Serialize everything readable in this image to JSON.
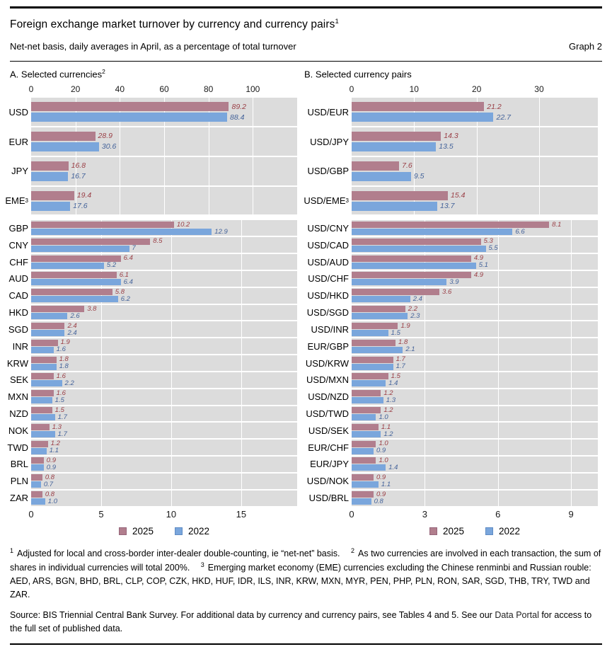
{
  "header": {
    "title": "Foreign exchange market turnover by currency and currency pairs",
    "title_sup": "1",
    "subtitle": "Net-net basis, daily averages in April, as a percentage of total turnover",
    "graph_label": "Graph 2"
  },
  "panels": [
    {
      "title": "A. Selected currencies",
      "title_sup": "2"
    },
    {
      "title": "B. Selected currency pairs",
      "title_sup": ""
    }
  ],
  "legend": {
    "items": [
      {
        "label": "2025"
      },
      {
        "label": "2022"
      }
    ]
  },
  "colors": {
    "bar_2025": "#b17e8d",
    "bar_2022": "#7aa6dc",
    "value_2025": "#9a3e45",
    "value_2022": "#44639a",
    "swatch_border_2025": "#96657a",
    "swatch_border_2022": "#5f8cc4",
    "plot_bg": "#dcdcdc",
    "grid": "#ffffff"
  },
  "chart_data": [
    {
      "type": "bar",
      "orientation": "horizontal",
      "panel": "A",
      "position": "top",
      "axis_side": "top",
      "axis_max": 120,
      "ticks": [
        0,
        20,
        40,
        60,
        80,
        100
      ],
      "grid": true,
      "categories": [
        "USD",
        "EUR",
        "JPY",
        "EME"
      ],
      "category_sups": {
        "EME": "3"
      },
      "series": [
        {
          "name": "2025",
          "values": [
            89.2,
            28.9,
            16.8,
            19.4
          ],
          "labels": [
            "89.2",
            "28.9",
            "16.8",
            "19.4"
          ]
        },
        {
          "name": "2022",
          "values": [
            88.4,
            30.6,
            16.7,
            17.6
          ],
          "labels": [
            "88.4",
            "30.6",
            "16.7",
            "17.6"
          ]
        }
      ]
    },
    {
      "type": "bar",
      "orientation": "horizontal",
      "panel": "A",
      "position": "bottom",
      "axis_side": "bottom",
      "axis_max": 19,
      "ticks": [
        0,
        5,
        10,
        15
      ],
      "grid": true,
      "categories": [
        "GBP",
        "CNY",
        "CHF",
        "AUD",
        "CAD",
        "HKD",
        "SGD",
        "INR",
        "KRW",
        "SEK",
        "MXN",
        "NZD",
        "NOK",
        "TWD",
        "BRL",
        "PLN",
        "ZAR"
      ],
      "category_sups": {},
      "series": [
        {
          "name": "2025",
          "values": [
            10.2,
            8.5,
            6.4,
            6.1,
            5.8,
            3.8,
            2.4,
            1.9,
            1.8,
            1.6,
            1.6,
            1.5,
            1.3,
            1.2,
            0.9,
            0.8,
            0.8
          ],
          "labels": [
            "10.2",
            "8.5",
            "6.4",
            "6.1",
            "5.8",
            "3.8",
            "2.4",
            "1.9",
            "1.8",
            "1.6",
            "1.6",
            "1.5",
            "1.3",
            "1.2",
            "0.9",
            "0.8",
            "0.8"
          ]
        },
        {
          "name": "2022",
          "values": [
            12.9,
            7.0,
            5.2,
            6.4,
            6.2,
            2.6,
            2.4,
            1.6,
            1.8,
            2.2,
            1.5,
            1.7,
            1.7,
            1.1,
            0.9,
            0.7,
            1.0
          ],
          "labels": [
            "12.9",
            "7",
            "5.2",
            "6.4",
            "6.2",
            "2.6",
            "2.4",
            "1.6",
            "1.8",
            "2.2",
            "1.5",
            "1.7",
            "1.7",
            "1.1",
            "0.9",
            "0.7",
            "1.0"
          ]
        }
      ]
    },
    {
      "type": "bar",
      "orientation": "horizontal",
      "panel": "B",
      "position": "top",
      "axis_side": "top",
      "axis_max": 39.4,
      "ticks": [
        0,
        10,
        20,
        30
      ],
      "grid": true,
      "categories": [
        "USD/EUR",
        "USD/JPY",
        "USD/GBP",
        "USD/EME"
      ],
      "category_sups": {
        "USD/EME": "3"
      },
      "series": [
        {
          "name": "2025",
          "values": [
            21.2,
            14.3,
            7.6,
            15.4
          ],
          "labels": [
            "21.2",
            "14.3",
            "7.6",
            "15.4"
          ]
        },
        {
          "name": "2022",
          "values": [
            22.7,
            13.5,
            9.5,
            13.7
          ],
          "labels": [
            "22.7",
            "13.5",
            "9.5",
            "13.7"
          ]
        }
      ]
    },
    {
      "type": "bar",
      "orientation": "horizontal",
      "panel": "B",
      "position": "bottom",
      "axis_side": "bottom",
      "axis_max": 10.1,
      "ticks": [
        0,
        3,
        6,
        9
      ],
      "grid": true,
      "categories": [
        "USD/CNY",
        "USD/CAD",
        "USD/AUD",
        "USD/CHF",
        "USD/HKD",
        "USD/SGD",
        "USD/INR",
        "EUR/GBP",
        "USD/KRW",
        "USD/MXN",
        "USD/NZD",
        "USD/TWD",
        "USD/SEK",
        "EUR/CHF",
        "EUR/JPY",
        "USD/NOK",
        "USD/BRL"
      ],
      "category_sups": {},
      "series": [
        {
          "name": "2025",
          "values": [
            8.1,
            5.3,
            4.9,
            4.9,
            3.6,
            2.2,
            1.9,
            1.8,
            1.7,
            1.5,
            1.2,
            1.2,
            1.1,
            1.0,
            1.0,
            0.9,
            0.9
          ],
          "labels": [
            "8.1",
            "5.3",
            "4.9",
            "4.9",
            "3.6",
            "2.2",
            "1.9",
            "1.8",
            "1.7",
            "1.5",
            "1.2",
            "1.2",
            "1.1",
            "1.0",
            "1.0",
            "0.9",
            "0.9"
          ]
        },
        {
          "name": "2022",
          "values": [
            6.6,
            5.5,
            5.1,
            3.9,
            2.4,
            2.3,
            1.5,
            2.1,
            1.7,
            1.4,
            1.3,
            1.0,
            1.2,
            0.9,
            1.4,
            1.1,
            0.8
          ],
          "labels": [
            "6.6",
            "5.5",
            "5.1",
            "3.9",
            "2.4",
            "2.3",
            "1.5",
            "2.1",
            "1.7",
            "1.4",
            "1.3",
            "1.0",
            "1.2",
            "0.9",
            "1.4",
            "1.1",
            "0.8"
          ]
        }
      ]
    }
  ],
  "footnotes": [
    {
      "sup": "1",
      "text": "Adjusted for local and cross-border inter-dealer double-counting, ie “net-net” basis."
    },
    {
      "sup": "2",
      "text": "As two currencies are involved in each transaction, the sum of shares in individual currencies will total 200%."
    },
    {
      "sup": "3",
      "text": "Emerging market economy (EME) currencies excluding the Chinese renminbi and Russian rouble: AED, ARS, BGN, BHD, BRL, CLP, COP, CZK, HKD, HUF, IDR, ILS, INR, KRW, MXN, MYR, PEN, PHP, PLN, RON, SAR, SGD, THB, TRY, TWD and ZAR."
    }
  ],
  "source": {
    "prefix": "Source: BIS Triennial Central Bank Survey. For additional data by currency and currency pairs, see Tables 4 and 5. See our ",
    "link": "Data Portal",
    "suffix": " for access to the full set of published data."
  }
}
